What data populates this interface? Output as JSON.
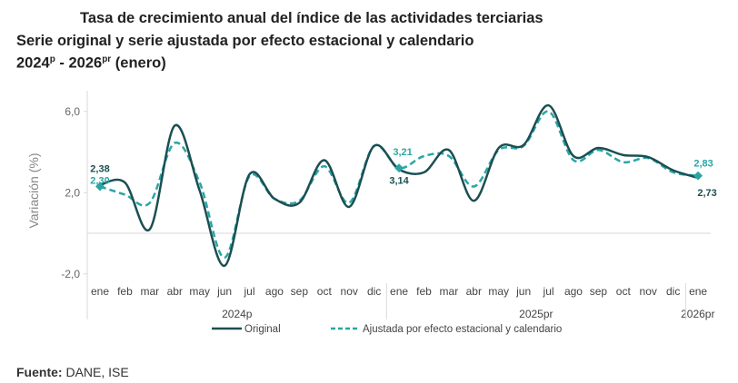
{
  "title": {
    "line1": "Tasa de crecimiento anual del índice de las actividades terciarias",
    "line2": "Serie original y serie ajustada por efecto estacional y calendario",
    "line3_a": "2024",
    "line3_a_sup": "p",
    "line3_b": " - 2026",
    "line3_b_sup": "pr",
    "line3_c": " (enero)"
  },
  "source": {
    "label": "Fuente:",
    "text": " DANE, ISE"
  },
  "colors": {
    "original": "#1b4f52",
    "adjusted": "#2aa5a5",
    "grid": "#d9d9d9"
  },
  "chart_data": {
    "type": "line",
    "ylabel": "Variación (%)",
    "ylim": [
      -2,
      6
    ],
    "yticks": [
      "-2,0",
      "2,0",
      "6,0"
    ],
    "ytick_values": [
      -2,
      2,
      6
    ],
    "smooth": true,
    "categories": [
      "ene",
      "feb",
      "mar",
      "abr",
      "may",
      "jun",
      "jul",
      "ago",
      "sep",
      "oct",
      "nov",
      "dic",
      "ene",
      "feb",
      "mar",
      "abr",
      "may",
      "jun",
      "jul",
      "ago",
      "sep",
      "oct",
      "nov",
      "dic",
      "ene"
    ],
    "year_groups": [
      {
        "label": "2024p",
        "count": 12
      },
      {
        "label": "2025pr",
        "count": 12
      },
      {
        "label": "2026pr",
        "count": 1
      }
    ],
    "series": [
      {
        "name": "Original",
        "style": "solid",
        "values": [
          2.38,
          2.5,
          0.2,
          5.3,
          2.1,
          -1.6,
          2.9,
          1.7,
          1.5,
          3.6,
          1.3,
          4.3,
          3.14,
          3.0,
          4.1,
          1.6,
          4.2,
          4.35,
          6.3,
          3.8,
          4.2,
          3.85,
          3.75,
          3.1,
          2.73
        ]
      },
      {
        "name": "Ajustada por efecto estacional y calendario",
        "style": "dashed",
        "values": [
          2.3,
          1.9,
          1.5,
          4.45,
          2.5,
          -1.2,
          2.8,
          1.7,
          1.6,
          3.3,
          1.5,
          4.3,
          3.21,
          3.8,
          3.8,
          2.3,
          4.1,
          4.3,
          6.0,
          3.6,
          4.1,
          3.5,
          3.7,
          3.0,
          2.83
        ]
      }
    ],
    "data_labels": [
      {
        "series": 0,
        "index": 0,
        "text": "2,38"
      },
      {
        "series": 1,
        "index": 0,
        "text": "2,30"
      },
      {
        "series": 0,
        "index": 12,
        "text": "3,14"
      },
      {
        "series": 1,
        "index": 12,
        "text": "3,21"
      },
      {
        "series": 0,
        "index": 24,
        "text": "2,73"
      },
      {
        "series": 1,
        "index": 24,
        "text": "2,83"
      }
    ],
    "legend_position": "bottom"
  }
}
